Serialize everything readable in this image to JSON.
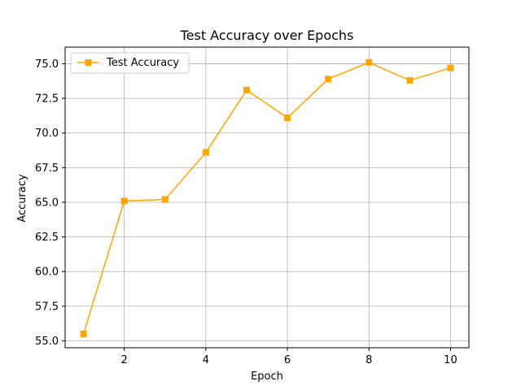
{
  "chart_data": {
    "type": "line",
    "title": "Test Accuracy over Epochs",
    "xlabel": "Epoch",
    "ylabel": "Accuracy",
    "xlim": [
      0.55,
      10.45
    ],
    "ylim": [
      54.5,
      76.2
    ],
    "xticks": [
      2,
      4,
      6,
      8,
      10
    ],
    "yticks": [
      55.0,
      57.5,
      60.0,
      62.5,
      65.0,
      67.5,
      70.0,
      72.5,
      75.0
    ],
    "grid": true,
    "legend_position": "top-left",
    "series": [
      {
        "name": "Test Accuracy",
        "color": "#FFA500",
        "marker": "square",
        "x": [
          1,
          2,
          3,
          4,
          5,
          6,
          7,
          8,
          9,
          10
        ],
        "y": [
          55.5,
          65.1,
          65.2,
          68.6,
          73.1,
          71.1,
          73.9,
          75.1,
          73.8,
          74.7
        ]
      }
    ]
  }
}
